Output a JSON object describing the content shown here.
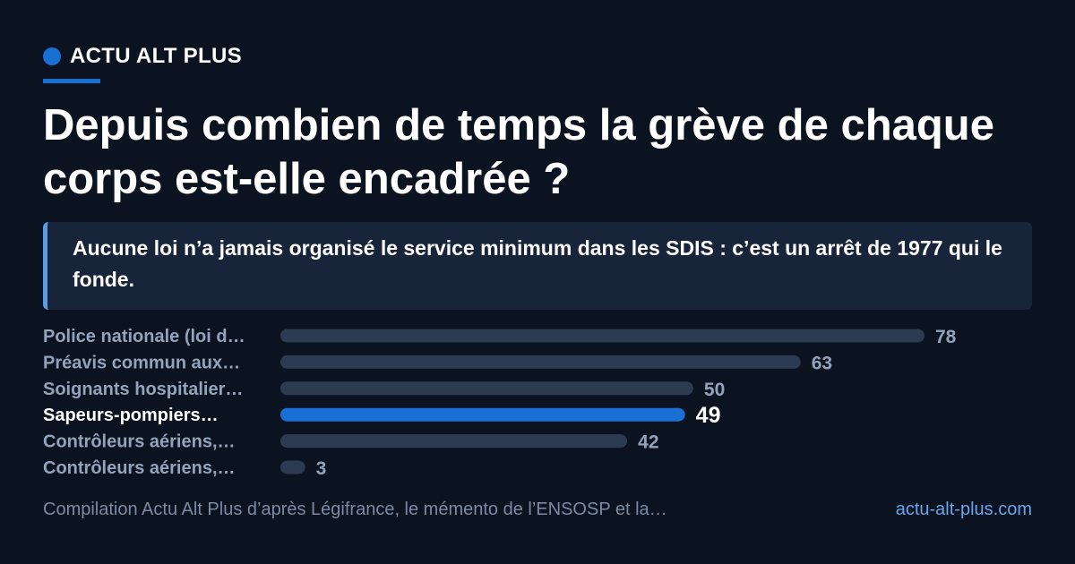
{
  "brand": {
    "name": "ACTU ALT PLUS"
  },
  "header": {
    "title": "Depuis combien de temps la grève de chaque corps est-elle encadrée ?"
  },
  "callout": {
    "text": "Aucune loi n’a jamais organisé le service minimum dans les SDIS : c’est un arrêt de 1977 qui le fonde."
  },
  "footer": {
    "source": "Compilation Actu Alt Plus d’après Légifrance, le mémento de l’ENSOSP et la…",
    "site": "actu-alt-plus.com"
  },
  "colors": {
    "accent": "#1a6fd4",
    "bar": "#2c3a52",
    "label": "#94a3bc",
    "highlight_label": "#ffffff"
  },
  "chart_data": {
    "type": "bar",
    "orientation": "horizontal",
    "categories": [
      "Police nationale (loi d…",
      "Préavis commun aux…",
      "Soignants hospitalier…",
      "Sapeurs-pompiers…",
      "Contrôleurs aériens,…",
      "Contrôleurs aériens,…"
    ],
    "values": [
      78,
      63,
      50,
      49,
      42,
      3
    ],
    "highlight_index": 3,
    "xlim": [
      0,
      78
    ]
  }
}
